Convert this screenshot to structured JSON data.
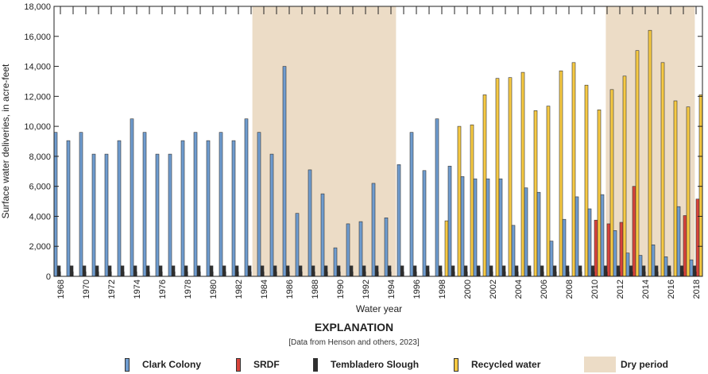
{
  "chart_data": {
    "type": "bar",
    "ylabel": "Surface water deliveries, in acre-feet",
    "xlabel": "Water year",
    "ylim": [
      0,
      18000
    ],
    "yticks": [
      0,
      2000,
      4000,
      6000,
      8000,
      10000,
      12000,
      14000,
      16000,
      18000
    ],
    "ytick_labels": [
      "0",
      "2,000",
      "4,000",
      "6,000",
      "8,000",
      "10,000",
      "12,000",
      "14,000",
      "16,000",
      "18,000"
    ],
    "categories": [
      "1968",
      "1969",
      "1970",
      "1971",
      "1972",
      "1973",
      "1974",
      "1975",
      "1976",
      "1977",
      "1978",
      "1979",
      "1980",
      "1981",
      "1982",
      "1983",
      "1984",
      "1985",
      "1986",
      "1987",
      "1988",
      "1989",
      "1990",
      "1991",
      "1992",
      "1993",
      "1994",
      "1995",
      "1996",
      "1997",
      "1998",
      "1999",
      "2000",
      "2001",
      "2002",
      "2003",
      "2004",
      "2005",
      "2006",
      "2007",
      "2008",
      "2009",
      "2010",
      "2011",
      "2012",
      "2013",
      "2014",
      "2015",
      "2016",
      "2017",
      "2018"
    ],
    "xtick_labels": [
      "1968",
      "1970",
      "1972",
      "1974",
      "1976",
      "1978",
      "1980",
      "1982",
      "1984",
      "1986",
      "1988",
      "1990",
      "1992",
      "1994",
      "1996",
      "1998",
      "2000",
      "2002",
      "2004",
      "2006",
      "2008",
      "2010",
      "2012",
      "2014",
      "2016",
      "2018"
    ],
    "grid": false,
    "series": [
      {
        "name": "Clark Colony",
        "color": "#6f9ccf",
        "values": [
          9600,
          9050,
          9600,
          8150,
          8150,
          9050,
          10500,
          9600,
          8150,
          8150,
          9050,
          9600,
          9050,
          9600,
          9050,
          10500,
          9600,
          8150,
          14000,
          4200,
          7100,
          5500,
          1900,
          3500,
          3650,
          6200,
          3900,
          7450,
          9600,
          7050,
          10500,
          7350,
          6650,
          6500,
          6500,
          6500,
          3400,
          5900,
          5600,
          2350,
          3800,
          5300,
          4500,
          5450,
          3050,
          1550,
          1400,
          2100,
          1300,
          4650,
          1100
        ]
      },
      {
        "name": "SRDF",
        "color": "#d8443b",
        "values": [
          0,
          0,
          0,
          0,
          0,
          0,
          0,
          0,
          0,
          0,
          0,
          0,
          0,
          0,
          0,
          0,
          0,
          0,
          0,
          0,
          0,
          0,
          0,
          0,
          0,
          0,
          0,
          0,
          0,
          0,
          0,
          0,
          0,
          0,
          0,
          0,
          0,
          0,
          0,
          0,
          0,
          0,
          3750,
          3500,
          3600,
          6000,
          0,
          0,
          0,
          4050,
          5150
        ]
      },
      {
        "name": "Tembladero Slough",
        "color": "#2f2f2f",
        "values": [
          700,
          700,
          700,
          700,
          700,
          700,
          700,
          700,
          700,
          700,
          700,
          700,
          700,
          700,
          700,
          700,
          700,
          700,
          700,
          700,
          700,
          700,
          700,
          700,
          700,
          700,
          700,
          700,
          700,
          700,
          700,
          700,
          700,
          700,
          700,
          700,
          700,
          700,
          700,
          700,
          700,
          700,
          700,
          700,
          700,
          700,
          700,
          700,
          700,
          700,
          700
        ]
      },
      {
        "name": "Recycled water",
        "color": "#f6c943",
        "values": [
          0,
          0,
          0,
          0,
          0,
          0,
          0,
          0,
          0,
          0,
          0,
          0,
          0,
          0,
          0,
          0,
          0,
          0,
          0,
          0,
          0,
          0,
          0,
          0,
          0,
          0,
          0,
          0,
          0,
          0,
          3700,
          10000,
          10100,
          12100,
          13200,
          13250,
          13600,
          11050,
          11350,
          13700,
          14250,
          12750,
          11100,
          12450,
          13350,
          15050,
          16400,
          14250,
          11700,
          11300,
          12100
        ]
      }
    ],
    "shaded_periods": [
      {
        "name": "Dry period",
        "start": 1983.6,
        "end": 1994.9,
        "color": "#ecdcc6"
      },
      {
        "name": "Dry period",
        "start": 2011.4,
        "end": 2018.4,
        "color": "#ecdcc6"
      }
    ]
  },
  "explanation": {
    "title": "EXPLANATION",
    "note": "[Data from Henson and others, 2023]",
    "items": [
      {
        "label": "Clark Colony",
        "color": "#6f9ccf"
      },
      {
        "label": "SRDF",
        "color": "#d8443b"
      },
      {
        "label": "Tembladero Slough",
        "color": "#2f2f2f"
      },
      {
        "label": "Recycled water",
        "color": "#f6c943"
      },
      {
        "label": "Dry period",
        "color": "#ecdcc6"
      }
    ]
  }
}
